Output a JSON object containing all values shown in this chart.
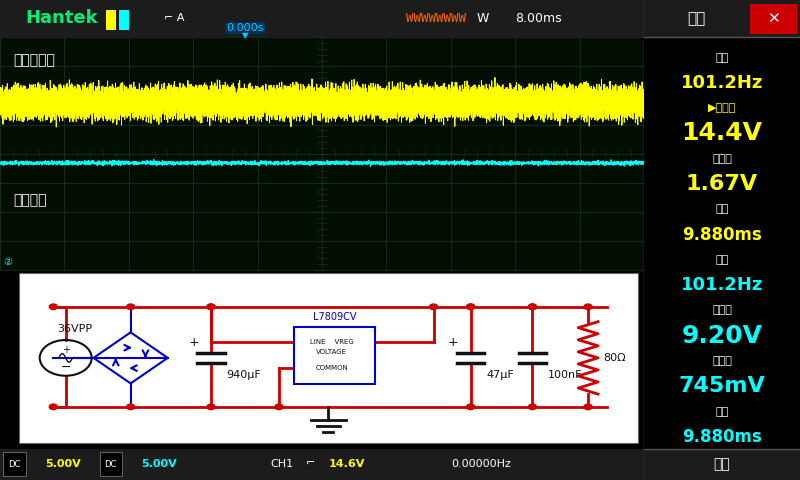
{
  "bg_color": "#000000",
  "grid_color": "#1a3a1a",
  "hantek_color": "#00ee77",
  "ch1_label": "非稳压输入",
  "ch2_label": "稳压输出",
  "ch1_color": "#ffff00",
  "ch2_color": "#00ffff",
  "noise_freq": 101.2,
  "ch1_mean": 14.4,
  "ch1_pp": 1.67,
  "ch1_period_ms": 9.88,
  "ch2_freq": 101.2,
  "ch2_mean": 9.2,
  "ch2_pp_mv": 745,
  "ch2_period_ms": 9.88,
  "time_div": "8.00ms",
  "bottom_dc1": "DC",
  "bottom_v1": "5.00V",
  "bottom_dc2": "DC",
  "bottom_v2": "5.00V",
  "bottom_ch1": "CH1",
  "bottom_ch1_val": "14.6V",
  "bottom_freq": "0.00000Hz",
  "right_panel": [
    {
      "text": "频率",
      "color": "#ffffff",
      "size": 8,
      "bold": false
    },
    {
      "text": "101.2Hz",
      "color": "#ffff00",
      "size": 13,
      "bold": true
    },
    {
      "text": "▶平均值",
      "color": "#ffff00",
      "size": 8,
      "bold": false
    },
    {
      "text": "14.4V",
      "color": "#ffff00",
      "size": 18,
      "bold": true
    },
    {
      "text": "峰峰值",
      "color": "#ffffff",
      "size": 8,
      "bold": false
    },
    {
      "text": "1.67V",
      "color": "#ffff00",
      "size": 16,
      "bold": true
    },
    {
      "text": "周期",
      "color": "#ffffff",
      "size": 8,
      "bold": false
    },
    {
      "text": "9.880ms",
      "color": "#ffff00",
      "size": 12,
      "bold": true
    },
    {
      "text": "频率",
      "color": "#ffffff",
      "size": 8,
      "bold": false
    },
    {
      "text": "101.2Hz",
      "color": "#00ffff",
      "size": 13,
      "bold": true
    },
    {
      "text": "平均值",
      "color": "#ffffff",
      "size": 8,
      "bold": false
    },
    {
      "text": "9.20V",
      "color": "#00ffff",
      "size": 18,
      "bold": true
    },
    {
      "text": "峰峰值",
      "color": "#ffffff",
      "size": 8,
      "bold": false
    },
    {
      "text": "745mV",
      "color": "#00ffff",
      "size": 16,
      "bold": true
    },
    {
      "text": "周期",
      "color": "#ffffff",
      "size": 8,
      "bold": false
    },
    {
      "text": "9.880ms",
      "color": "#00ffff",
      "size": 12,
      "bold": true
    }
  ]
}
